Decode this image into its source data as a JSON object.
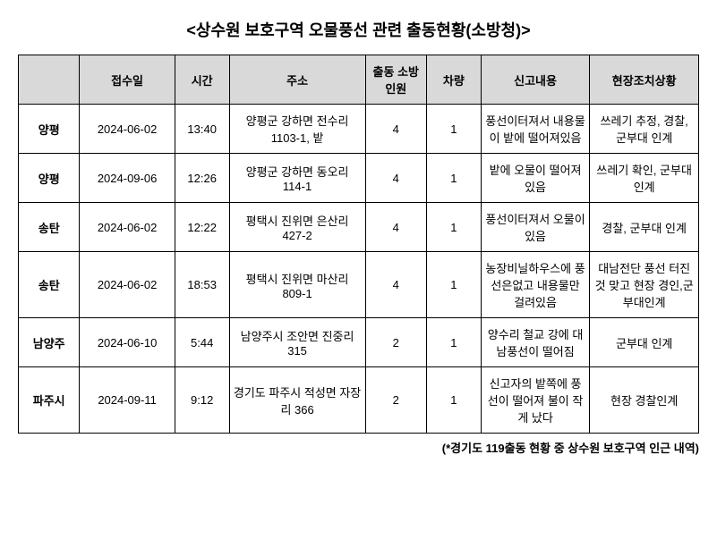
{
  "title": "<상수원 보호구역 오물풍선 관련 출동현황(소방청)>",
  "columns": {
    "region": "",
    "date": "접수일",
    "time": "시간",
    "address": "주소",
    "personnel": "출동\n소방인원",
    "vehicle": "차량",
    "report": "신고내용",
    "action": "현장조치상황"
  },
  "rows": [
    {
      "region": "양평",
      "date": "2024-06-02",
      "time": "13:40",
      "address": "양평군 강하면 전수리 1103-1, 밭",
      "personnel": "4",
      "vehicle": "1",
      "report": "풍선이터져서 내용물이 밭에 떨어져있음",
      "action": "쓰레기 추정, 경찰, 군부대 인계"
    },
    {
      "region": "양평",
      "date": "2024-09-06",
      "time": "12:26",
      "address": "양평군 강하면 동오리 114-1",
      "personnel": "4",
      "vehicle": "1",
      "report": "밭에 오물이 떨어져 있음",
      "action": "쓰레기 확인, 군부대 인계"
    },
    {
      "region": "송탄",
      "date": "2024-06-02",
      "time": "12:22",
      "address": "평택시 진위면 은산리 427-2",
      "personnel": "4",
      "vehicle": "1",
      "report": "풍선이터져서 오물이 있음",
      "action": "경찰, 군부대 인계"
    },
    {
      "region": "송탄",
      "date": "2024-06-02",
      "time": "18:53",
      "address": "평택시 진위면 마산리 809-1",
      "personnel": "4",
      "vehicle": "1",
      "report": "농장비닐하우스에 풍선은없고 내용물만 걸려있음",
      "action": "대남전단 풍선 터진것 맞고 현장 경인,군부대인계"
    },
    {
      "region": "남양주",
      "date": "2024-06-10",
      "time": "5:44",
      "address": "남양주시 조안면 진중리 315",
      "personnel": "2",
      "vehicle": "1",
      "report": "양수리 철교 강에 대남풍선이 떨어짐",
      "action": "군부대 인계"
    },
    {
      "region": "파주시",
      "date": "2024-09-11",
      "time": "9:12",
      "address": "경기도 파주시 적성면 자장리 366",
      "personnel": "2",
      "vehicle": "1",
      "report": "신고자의 밭쪽에 풍선이 떨어져 불이 작게 났다",
      "action": "현장 경찰인계"
    }
  ],
  "footnote": "(*경기도 119출동 현황 중 상수원 보호구역 인근 내역)"
}
